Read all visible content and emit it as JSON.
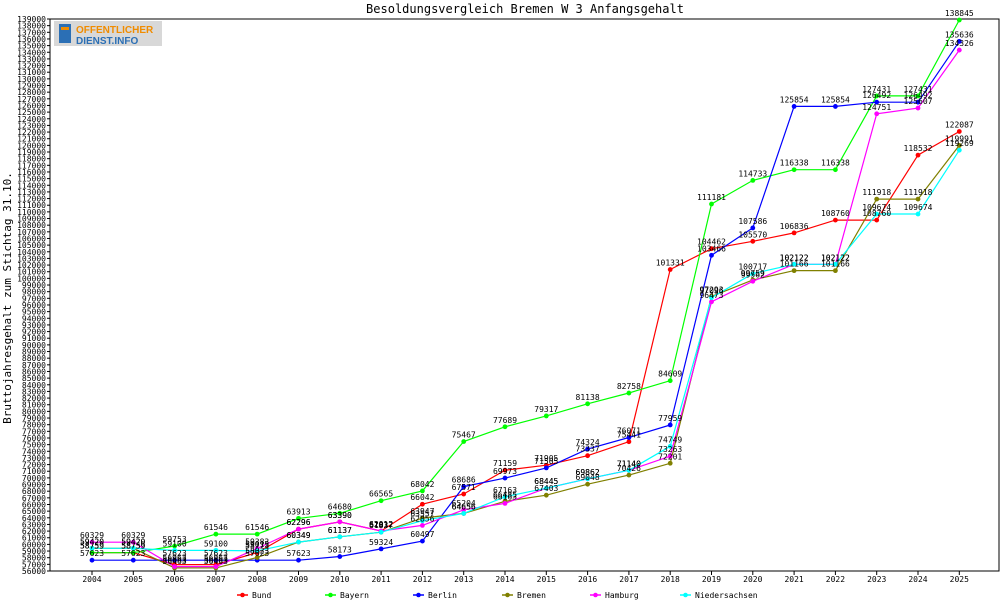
{
  "logo": {
    "line1": "OFFENTLICHER",
    "line2": "DIENST.INFO"
  },
  "chart_data": {
    "type": "line",
    "title": "Besoldungsvergleich Bremen W 3 Anfangsgehalt",
    "xlabel": "",
    "ylabel": "Bruttojahresgehalt zum Stichtag 31.10.",
    "categories": [
      "2004",
      "2005",
      "2006",
      "2007",
      "2008",
      "2009",
      "2010",
      "2011",
      "2012",
      "2013",
      "2014",
      "2015",
      "2016",
      "2017",
      "2018",
      "2019",
      "2020",
      "2021",
      "2022",
      "2023",
      "2024",
      "2025"
    ],
    "ylim": [
      56000,
      139000
    ],
    "ytick_step": 1000,
    "grid": false,
    "legend_position": "bottom",
    "series": [
      {
        "name": "Bund",
        "color": "#ff0000",
        "values": [
          58759,
          58759,
          56963,
          56963,
          58773,
          62296,
          63390,
          62012,
          66042,
          67571,
          71159,
          71905,
          73337,
          75441,
          101331,
          104462,
          105570,
          106836,
          108760,
          108760,
          118532,
          122087
        ]
      },
      {
        "name": "Bayern",
        "color": "#00ff00",
        "values": [
          58759,
          58759,
          59753,
          61546,
          61546,
          63913,
          64680,
          66565,
          68042,
          75467,
          77689,
          79317,
          81138,
          82758,
          84609,
          111181,
          114733,
          116338,
          116338,
          127431,
          127431,
          138845
        ]
      },
      {
        "name": "Berlin",
        "color": "#0000ff",
        "values": [
          57623,
          57623,
          57623,
          57623,
          57623,
          57623,
          58173,
          59324,
          60497,
          68686,
          69973,
          71505,
          74324,
          76071,
          77959,
          103466,
          107586,
          125854,
          125854,
          126492,
          126492,
          135636
        ]
      },
      {
        "name": "Bremen",
        "color": "#808000",
        "values": [
          59420,
          59420,
          56463,
          56463,
          58023,
          60349,
          61137,
          61837,
          63947,
          64656,
          66485,
          67403,
          69048,
          70426,
          72201,
          97293,
          99759,
          101166,
          101166,
          111918,
          111918,
          119991
        ]
      },
      {
        "name": "Hamburg",
        "color": "#ff00ff",
        "values": [
          60329,
          60329,
          56663,
          56663,
          59383,
          62296,
          63390,
          62012,
          62856,
          65204,
          66163,
          68445,
          69862,
          71140,
          73263,
          96473,
          99562,
          102122,
          102122,
          124751,
          125607,
          134326
        ]
      },
      {
        "name": "Niedersachsen",
        "color": "#00ffff",
        "values": [
          59420,
          59420,
          59100,
          59100,
          59015,
          60349,
          61137,
          61837,
          63557,
          64656,
          67163,
          68445,
          69862,
          71140,
          74749,
          97096,
          100717,
          102122,
          102122,
          109674,
          109674,
          119269
        ]
      }
    ]
  }
}
